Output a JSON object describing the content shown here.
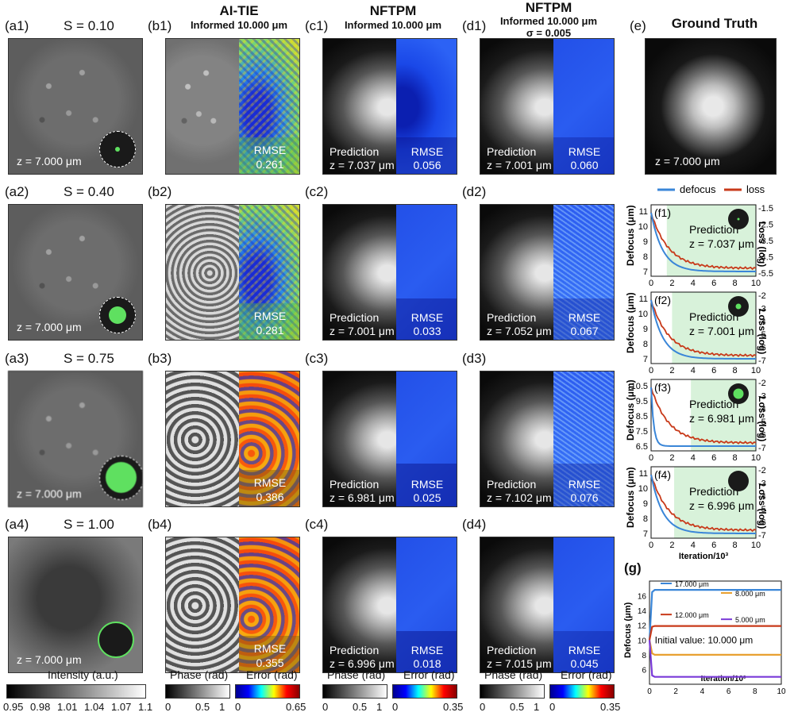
{
  "columns": {
    "a": {
      "labels": [
        "(a1)",
        "(a2)",
        "(a3)",
        "(a4)"
      ],
      "s_values": [
        "S = 0.10",
        "S = 0.40",
        "S = 0.75",
        "S = 1.00"
      ],
      "z_label": "z = 7.000 μm"
    },
    "b": {
      "title": "AI-TIE",
      "subtitle": "Informed 10.000 μm",
      "labels": [
        "(b1)",
        "(b2)",
        "(b3)",
        "(b4)"
      ],
      "rmse": [
        "0.261",
        "0.281",
        "0.386",
        "0.355"
      ]
    },
    "c": {
      "title": "NFTPM",
      "subtitle": "Informed 10.000 μm",
      "labels": [
        "(c1)",
        "(c2)",
        "(c3)",
        "(c4)"
      ],
      "pred": [
        "z = 7.037 μm",
        "z = 7.001 μm",
        "z = 6.981 μm",
        "z = 6.996 μm"
      ],
      "rmse": [
        "0.056",
        "0.033",
        "0.025",
        "0.018"
      ]
    },
    "d": {
      "title": "NFTPM",
      "subtitle": "Informed 10.000 μm",
      "sigma": "σ = 0.005",
      "labels": [
        "(d1)",
        "(d2)",
        "(d3)",
        "(d4)"
      ],
      "pred": [
        "z = 7.001 μm",
        "z = 7.052 μm",
        "z = 7.102 μm",
        "z = 7.015 μm"
      ],
      "rmse": [
        "0.060",
        "0.067",
        "0.076",
        "0.045"
      ]
    },
    "e": {
      "label": "(e)",
      "title": "Ground Truth",
      "z_label": "z = 7.000 μm"
    }
  },
  "text": {
    "prediction": "Prediction",
    "rmse": "RMSE"
  },
  "colorbars": {
    "intensity": {
      "label": "Intensity (a.u.)",
      "ticks": [
        "0.95",
        "0.98",
        "1.01",
        "1.04",
        "1.07",
        "1.1"
      ]
    },
    "b_phase": {
      "label": "Phase (rad)",
      "ticks": [
        "0",
        "0.5",
        "1"
      ]
    },
    "b_error": {
      "label": "Error (rad)",
      "ticks": [
        "0",
        "0.65"
      ]
    },
    "c_phase": {
      "label": "Phase (rad)",
      "ticks": [
        "0",
        "0.5",
        "1"
      ]
    },
    "c_error": {
      "label": "Error (rad)",
      "ticks": [
        "0",
        "0.35"
      ]
    },
    "d_phase": {
      "label": "Phase (rad)",
      "ticks": [
        "0",
        "0.5",
        "1"
      ]
    },
    "d_error": {
      "label": "Error (rad)",
      "ticks": [
        "0",
        "0.35"
      ]
    }
  },
  "legend": {
    "defocus": "defocus",
    "loss": "loss",
    "defocus_color": "#3a86d8",
    "loss_color": "#c83a1a"
  },
  "f_panels": {
    "ylabel": "Defocus (μm)",
    "y2label": "Loss (log)",
    "xlabel": "Iteration/10³",
    "panels": [
      {
        "label": "(f1)",
        "pred": "z = 7.037 μm",
        "yticks": [
          "11",
          "10",
          "9",
          "8",
          "7"
        ],
        "y2ticks": [
          "-1.5",
          "-2.5",
          "-3.5",
          "-4.5",
          "-5.5"
        ]
      },
      {
        "label": "(f2)",
        "pred": "z = 7.001 μm",
        "yticks": [
          "11",
          "10",
          "9",
          "8",
          "7"
        ],
        "y2ticks": [
          "-2",
          "-3",
          "-4",
          "-5",
          "-6",
          "-7"
        ]
      },
      {
        "label": "(f3)",
        "pred": "z = 6.981 μm",
        "yticks": [
          "10.5",
          "9.5",
          "8.5",
          "7.5",
          "6.5"
        ],
        "y2ticks": [
          "-2",
          "-3",
          "-4",
          "-5",
          "-6",
          "-7"
        ]
      },
      {
        "label": "(f4)",
        "pred": "z = 6.996 μm",
        "yticks": [
          "11",
          "10",
          "9",
          "8",
          "7"
        ],
        "y2ticks": [
          "-2",
          "-3",
          "-4",
          "-5",
          "-6",
          "-7"
        ]
      }
    ],
    "xticks": [
      "0",
      "2",
      "4",
      "6",
      "8",
      "10"
    ]
  },
  "chart_data": {
    "type": "line",
    "title": "",
    "xlabel": "Iteration/10³",
    "ylabel": "Defocus (μm)",
    "xlim": [
      0,
      10
    ],
    "ylim": [
      4,
      18
    ],
    "annotation": "Initial value: 10.000 μm",
    "label": "(g)",
    "yticks": [
      "16",
      "14",
      "12",
      "10",
      "8",
      "6"
    ],
    "xticks": [
      "0",
      "2",
      "4",
      "6",
      "8",
      "10"
    ],
    "series": [
      {
        "name": "17.000 μm",
        "color": "#3a86d8",
        "x": [
          0,
          0.2,
          0.4,
          10
        ],
        "y": [
          10,
          16.5,
          16.8,
          16.8
        ]
      },
      {
        "name": "8.000 μm",
        "color": "#e8a030",
        "x": [
          0,
          0.2,
          0.4,
          10
        ],
        "y": [
          10,
          8.2,
          8.0,
          8.0
        ]
      },
      {
        "name": "12.000 μm",
        "color": "#c83a1a",
        "x": [
          0,
          0.2,
          0.4,
          10
        ],
        "y": [
          10,
          11.8,
          11.9,
          11.9
        ]
      },
      {
        "name": "5.000 μm",
        "color": "#7a3ad8",
        "x": [
          0,
          0.2,
          0.4,
          10
        ],
        "y": [
          10,
          5.2,
          5.0,
          5.0
        ]
      }
    ]
  }
}
